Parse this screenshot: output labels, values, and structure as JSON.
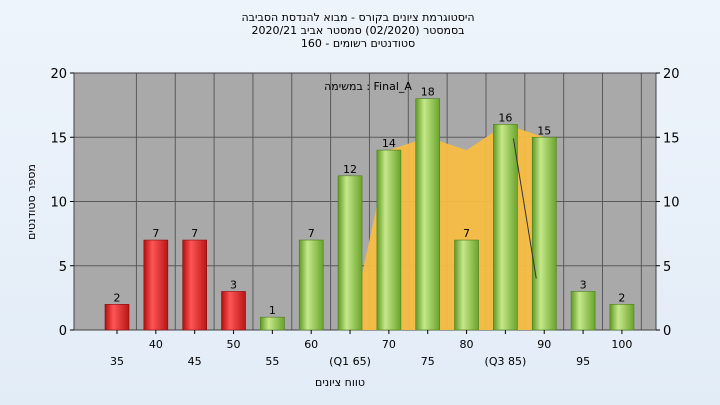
{
  "chart_data": {
    "type": "bar",
    "title_lines": [
      "היסטוגרמת ציונים בקורס - מבוא להנדסת הסביבה",
      "בסמסטר  (02/2020)  סמסטר אביב 2020/21",
      "סטודנטים רשומים - 160"
    ],
    "annotation": "במשימה : Final_A",
    "xlabel": "טווח ציונים",
    "ylabel": "מספר סטודנטים",
    "ylim": [
      0,
      20
    ],
    "yticks": [
      0,
      5,
      10,
      15,
      20
    ],
    "categories": [
      "35",
      "40",
      "45",
      "50",
      "55",
      "60",
      "(Q1 65)",
      "70",
      "75",
      "80",
      "(Q3 85)",
      "90",
      "95",
      "100"
    ],
    "values": [
      2,
      7,
      7,
      3,
      1,
      7,
      12,
      14,
      18,
      7,
      16,
      15,
      3,
      2
    ],
    "bar_colors": [
      "red",
      "red",
      "red",
      "red",
      "green",
      "green",
      "green",
      "green",
      "green",
      "green",
      "green",
      "green",
      "green",
      "green"
    ],
    "area_series": {
      "x_from": "(Q1 65)",
      "x_to": "90",
      "values": [
        0,
        14,
        15,
        14,
        16,
        15
      ]
    },
    "marker_line": {
      "from": "(Q3 85)",
      "to": "90"
    },
    "grid": true,
    "colors": {
      "plot_bg": "#a9a9a9",
      "red": "#e02020",
      "green": "#8cc63f",
      "area": "#f7bd42",
      "grid": "#5a5a5a"
    }
  }
}
